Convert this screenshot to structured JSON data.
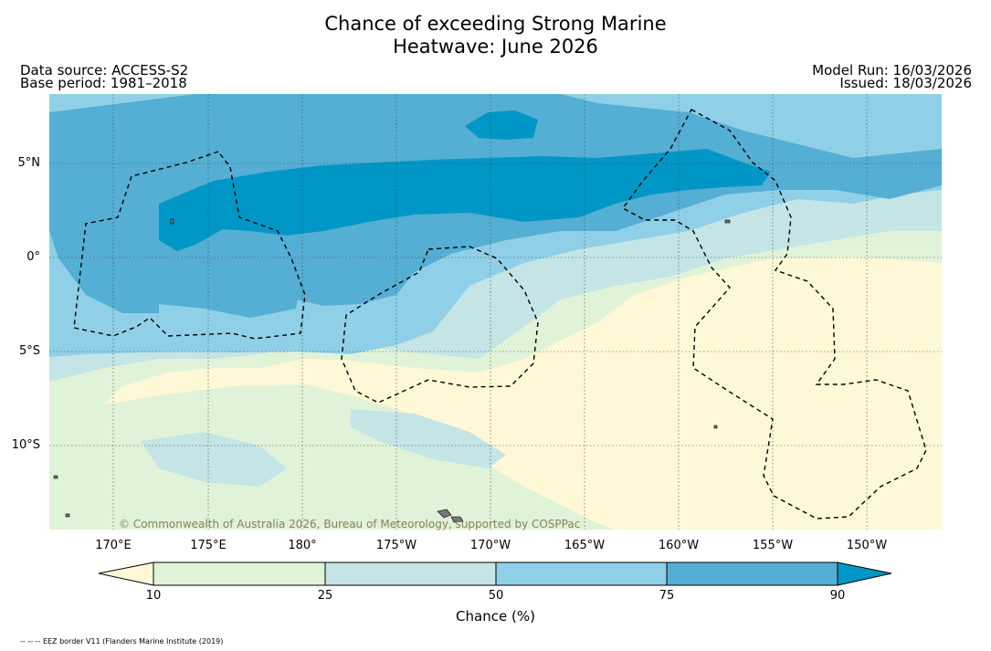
{
  "title": {
    "line1": "Chance of exceeding Strong Marine",
    "line2": "Heatwave: June 2026"
  },
  "meta": {
    "data_source": "Data source: ACCESS-S2",
    "base_period": "Base period: 1981–2018",
    "model_run": "Model Run: 16/03/2026",
    "issued": "Issued: 18/03/2026"
  },
  "map": {
    "latitude_labels": [
      "5°N",
      "0°",
      "5°S",
      "10°S"
    ],
    "longitude_labels": [
      "170°E",
      "175°E",
      "180°",
      "175°W",
      "170°W",
      "165°W",
      "160°W",
      "155°W",
      "150°W"
    ],
    "copyright": "© Commonwealth of Australia 2026, Bureau of Meteorology, supported by COSPPac"
  },
  "colorbar": {
    "ticks": [
      "10",
      "25",
      "50",
      "75",
      "90"
    ],
    "title": "Chance (%)",
    "colors": {
      "below_10": "#fff8d6",
      "c10_25": "#e0f3d8",
      "c25_50": "#c4e4e6",
      "c50_75": "#8fd0e8",
      "c75_90": "#55aed3",
      "above_90": "#0097c6"
    }
  },
  "footnote": "-- -- -- EEZ border V11 (Flanders Marine Institute (2019)"
}
